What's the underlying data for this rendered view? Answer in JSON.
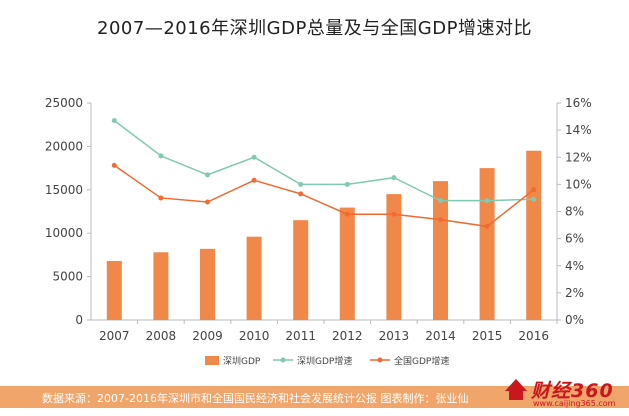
{
  "title": "2007—2016年深圳GDP总量及与全国GDP增速对比",
  "footer": "数据来源：2007-2016年深圳市和全国国民经济和社会发展统计公报   图表制作：张业仙",
  "logo": {
    "text": "财经360",
    "url": "www.caijing365.com",
    "color": "#c9171e"
  },
  "chart_data": {
    "type": "bar+line",
    "categories": [
      "2007",
      "2008",
      "2009",
      "2010",
      "2011",
      "2012",
      "2013",
      "2014",
      "2015",
      "2016"
    ],
    "bar_series": {
      "name": "深圳GDP",
      "color": "#f0884a",
      "values": [
        6800,
        7800,
        8200,
        9600,
        11500,
        12950,
        14500,
        16000,
        17500,
        19500
      ]
    },
    "line_series": [
      {
        "name": "深圳GDP增速",
        "color": "#7fcab0",
        "values": [
          14.7,
          12.1,
          10.7,
          12.0,
          10.0,
          10.0,
          10.5,
          8.8,
          8.8,
          8.9
        ]
      },
      {
        "name": "全国GDP增速",
        "color": "#f06a32",
        "values": [
          11.4,
          9.0,
          8.7,
          10.3,
          9.3,
          7.8,
          7.8,
          7.4,
          6.9,
          9.6
        ]
      }
    ],
    "y_left": {
      "min": 0,
      "max": 25000,
      "ticks": [
        "0",
        "5000",
        "10000",
        "15000",
        "20000",
        "25000"
      ]
    },
    "y_right": {
      "min": 0,
      "max": 16,
      "ticks": [
        "0%",
        "2%",
        "4%",
        "6%",
        "8%",
        "10%",
        "12%",
        "14%",
        "16%"
      ]
    },
    "grid": false,
    "legend_position": "bottom"
  }
}
